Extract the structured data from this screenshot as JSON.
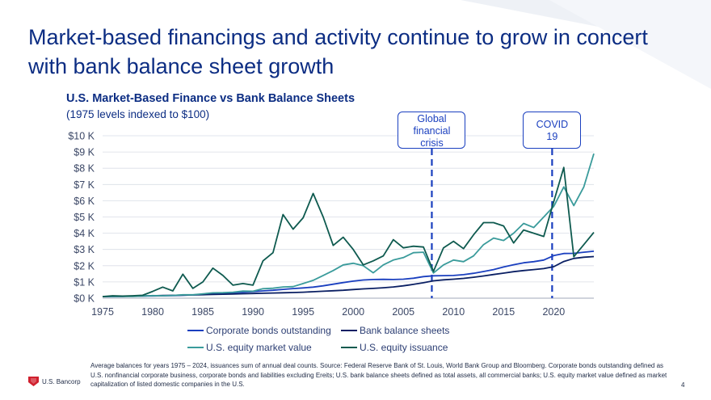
{
  "page": {
    "title": "Market-based financings and activity continue to grow in concert with bank balance sheet growth",
    "footnote": "Average balances for years 1975 – 2024, issuances sum of annual deal counts.  Source: Federal Reserve Bank of St. Louis, World Bank Group and Bloomberg.  Corporate bonds outstanding defined as U.S. nonfinancial corporate business, corporate bonds and liabilities excluding Ereits; U.S. bank balance sheets defined as total assets, all commercial banks; U.S. equity market value defined as market capitalization of listed domestic companies in the U.S.",
    "logo_text": "U.S. Bancorp",
    "page_number": "4",
    "colors": {
      "title": "#0c2d83",
      "accent_red": "#d0202e",
      "callout": "#1a3fbf"
    }
  },
  "chart_data": {
    "type": "line",
    "title": "U.S. Market-Based Finance vs Bank Balance Sheets",
    "subtitle": "(1975 levels indexed to $100)",
    "xlabel": "",
    "ylabel": "",
    "xlim": [
      1975,
      2024
    ],
    "ylim": [
      0,
      10000
    ],
    "x_ticks": [
      1975,
      1980,
      1985,
      1990,
      1995,
      2000,
      2005,
      2010,
      2015,
      2020
    ],
    "x_tick_labels": [
      "1975",
      "1980",
      "1985",
      "1990",
      "1995",
      "2000",
      "2005",
      "2010",
      "2015",
      "2020"
    ],
    "y_ticks": [
      0,
      1000,
      2000,
      3000,
      4000,
      5000,
      6000,
      7000,
      8000,
      9000,
      10000
    ],
    "y_tick_labels": [
      "$0 K",
      "$1 K",
      "$2 K",
      "$3 K",
      "$4 K",
      "$5 K",
      "$6 K",
      "$7 K",
      "$8 K",
      "$9 K",
      "$10 K"
    ],
    "grid": true,
    "legend_position": "bottom",
    "annotations": [
      {
        "label": "Global financial crisis",
        "lines": [
          "Global",
          "financial",
          "crisis"
        ],
        "x": 2008
      },
      {
        "label": "COVID 19",
        "lines": [
          "COVID",
          "19"
        ],
        "x": 2020
      }
    ],
    "series": [
      {
        "name": "Corporate bonds outstanding",
        "color": "#1a3fbf",
        "x": [
          1975,
          1976,
          1977,
          1978,
          1979,
          1980,
          1981,
          1982,
          1983,
          1984,
          1985,
          1986,
          1987,
          1988,
          1989,
          1990,
          1991,
          1992,
          1993,
          1994,
          1995,
          1996,
          1997,
          1998,
          1999,
          2000,
          2001,
          2002,
          2003,
          2004,
          2005,
          2006,
          2007,
          2008,
          2009,
          2010,
          2011,
          2012,
          2013,
          2014,
          2015,
          2016,
          2017,
          2018,
          2019,
          2020,
          2021,
          2022,
          2023,
          2024
        ],
        "y": [
          100,
          108,
          115,
          122,
          130,
          140,
          150,
          160,
          180,
          200,
          240,
          280,
          310,
          340,
          370,
          410,
          450,
          490,
          540,
          590,
          630,
          680,
          760,
          860,
          960,
          1050,
          1120,
          1150,
          1160,
          1150,
          1170,
          1230,
          1330,
          1380,
          1390,
          1400,
          1450,
          1530,
          1640,
          1760,
          1920,
          2060,
          2180,
          2250,
          2350,
          2620,
          2750,
          2760,
          2830,
          2890
        ]
      },
      {
        "name": "Bank balance sheets",
        "color": "#0a1f63",
        "x": [
          1975,
          1976,
          1977,
          1978,
          1979,
          1980,
          1981,
          1982,
          1983,
          1984,
          1985,
          1986,
          1987,
          1988,
          1989,
          1990,
          1991,
          1992,
          1993,
          1994,
          1995,
          1996,
          1997,
          1998,
          1999,
          2000,
          2001,
          2002,
          2003,
          2004,
          2005,
          2006,
          2007,
          2008,
          2009,
          2010,
          2011,
          2012,
          2013,
          2014,
          2015,
          2016,
          2017,
          2018,
          2019,
          2020,
          2021,
          2022,
          2023,
          2024
        ],
        "y": [
          100,
          108,
          116,
          128,
          140,
          150,
          162,
          175,
          188,
          200,
          215,
          230,
          245,
          260,
          275,
          290,
          305,
          320,
          335,
          350,
          370,
          400,
          430,
          460,
          490,
          530,
          570,
          600,
          640,
          690,
          760,
          850,
          950,
          1070,
          1130,
          1170,
          1220,
          1290,
          1370,
          1460,
          1540,
          1630,
          1700,
          1760,
          1820,
          1940,
          2260,
          2450,
          2520,
          2560
        ]
      },
      {
        "name": "U.S. equity market value",
        "color": "#3a9b9b",
        "x": [
          1975,
          1976,
          1977,
          1978,
          1979,
          1980,
          1981,
          1982,
          1983,
          1984,
          1985,
          1986,
          1987,
          1988,
          1989,
          1990,
          1991,
          1992,
          1993,
          1994,
          1995,
          1996,
          1997,
          1998,
          1999,
          2000,
          2001,
          2002,
          2003,
          2004,
          2005,
          2006,
          2007,
          2008,
          2009,
          2010,
          2011,
          2012,
          2013,
          2014,
          2015,
          2016,
          2017,
          2018,
          2019,
          2020,
          2021,
          2022,
          2023,
          2024
        ],
        "y": [
          100,
          110,
          105,
          110,
          130,
          160,
          150,
          170,
          210,
          210,
          270,
          330,
          340,
          370,
          440,
          430,
          580,
          610,
          690,
          710,
          900,
          1100,
          1400,
          1700,
          2050,
          2150,
          2000,
          1560,
          2050,
          2350,
          2500,
          2800,
          2830,
          1550,
          2050,
          2350,
          2250,
          2600,
          3300,
          3700,
          3550,
          4000,
          4600,
          4350,
          5000,
          5650,
          6850,
          5700,
          6850,
          8900
        ]
      },
      {
        "name": "U.S. equity issuance",
        "color": "#0e5a4f",
        "x": [
          1975,
          1976,
          1977,
          1978,
          1979,
          1980,
          1981,
          1982,
          1983,
          1984,
          1985,
          1986,
          1987,
          1988,
          1989,
          1990,
          1991,
          1992,
          1993,
          1994,
          1995,
          1996,
          1997,
          1998,
          1999,
          2000,
          2001,
          2002,
          2003,
          2004,
          2005,
          2006,
          2007,
          2008,
          2009,
          2010,
          2011,
          2012,
          2013,
          2014,
          2015,
          2016,
          2017,
          2018,
          2019,
          2020,
          2021,
          2022,
          2023,
          2024
        ],
        "y": [
          100,
          150,
          130,
          150,
          180,
          420,
          680,
          450,
          1480,
          600,
          1000,
          1850,
          1400,
          800,
          900,
          800,
          2300,
          2800,
          5150,
          4250,
          4950,
          6450,
          5000,
          3250,
          3750,
          3000,
          2050,
          2300,
          2600,
          3600,
          3100,
          3200,
          3150,
          1650,
          3100,
          3500,
          3050,
          3900,
          4650,
          4650,
          4450,
          3400,
          4200,
          4000,
          3800,
          5950,
          8050,
          2550,
          3300,
          4050
        ]
      }
    ]
  }
}
